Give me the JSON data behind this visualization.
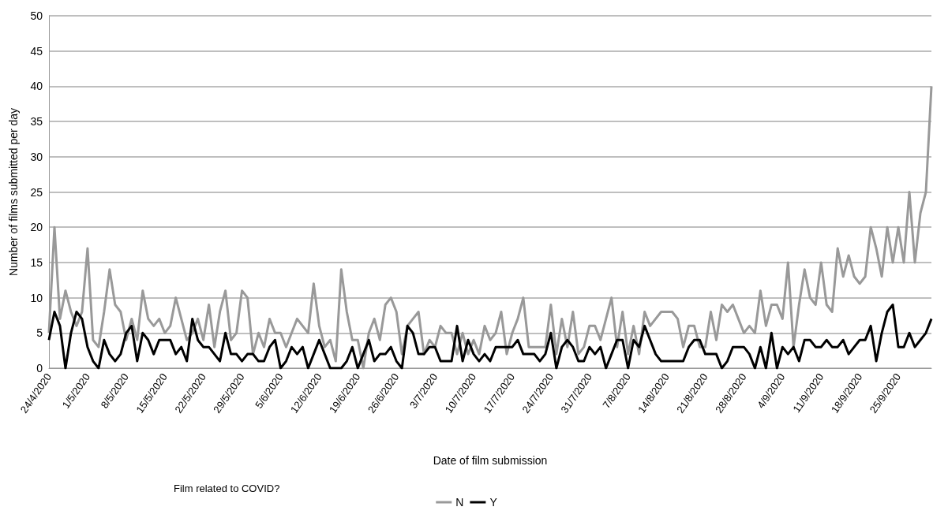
{
  "chart_data": {
    "type": "line",
    "xlabel": "Date of film submission",
    "ylabel": "Number of films submitted per day",
    "legend_title": "Film related to COVID?",
    "legend": "bottom",
    "grid": "y",
    "marker": "none",
    "line_style": "solid",
    "ylim": [
      0,
      50
    ],
    "yticks": [
      0,
      5,
      10,
      15,
      20,
      25,
      30,
      35,
      40,
      45,
      50
    ],
    "categories": [
      "24/4/2020",
      null,
      null,
      null,
      null,
      null,
      null,
      "1/5/2020",
      null,
      null,
      null,
      null,
      null,
      null,
      "8/5/2020",
      null,
      null,
      null,
      null,
      null,
      null,
      "15/5/2020",
      null,
      null,
      null,
      null,
      null,
      null,
      "22/5/2020",
      null,
      null,
      null,
      null,
      null,
      null,
      "29/5/2020",
      null,
      null,
      null,
      null,
      null,
      null,
      "5/6/2020",
      null,
      null,
      null,
      null,
      null,
      null,
      "12/6/2020",
      null,
      null,
      null,
      null,
      null,
      null,
      "19/6/2020",
      null,
      null,
      null,
      null,
      null,
      null,
      "26/6/2020",
      null,
      null,
      null,
      null,
      null,
      null,
      "3/7/2020",
      null,
      null,
      null,
      null,
      null,
      null,
      "10/7/2020",
      null,
      null,
      null,
      null,
      null,
      null,
      "17/7/2020",
      null,
      null,
      null,
      null,
      null,
      null,
      "24/7/2020",
      null,
      null,
      null,
      null,
      null,
      null,
      "31/7/2020",
      null,
      null,
      null,
      null,
      null,
      null,
      "7/8/2020",
      null,
      null,
      null,
      null,
      null,
      null,
      "14/8/2020",
      null,
      null,
      null,
      null,
      null,
      null,
      "21/8/2020",
      null,
      null,
      null,
      null,
      null,
      null,
      "28/8/2020",
      null,
      null,
      null,
      null,
      null,
      null,
      "4/9/2020",
      null,
      null,
      null,
      null,
      null,
      null,
      "11/9/2020",
      null,
      null,
      null,
      null,
      null,
      null,
      "18/9/2020",
      null,
      null,
      null,
      null,
      null,
      null,
      "25/9/2020",
      null,
      null,
      null,
      null,
      null,
      null
    ],
    "series": [
      {
        "name": "N",
        "color": "#999999",
        "values": [
          5,
          20,
          7,
          11,
          8,
          6,
          8,
          17,
          4,
          3,
          8,
          14,
          9,
          8,
          4,
          7,
          4,
          11,
          7,
          6,
          7,
          5,
          6,
          10,
          7,
          4,
          5,
          7,
          4,
          9,
          3,
          8,
          11,
          4,
          5,
          11,
          10,
          2,
          5,
          3,
          7,
          5,
          5,
          3,
          5,
          7,
          6,
          5,
          12,
          6,
          3,
          4,
          1,
          14,
          8,
          4,
          4,
          0,
          5,
          7,
          4,
          9,
          10,
          8,
          2,
          6,
          7,
          8,
          2,
          4,
          3,
          6,
          5,
          5,
          2,
          5,
          2,
          4,
          2,
          6,
          4,
          5,
          8,
          2,
          5,
          7,
          10,
          3,
          3,
          3,
          3,
          9,
          2,
          7,
          3,
          8,
          2,
          3,
          6,
          6,
          4,
          7,
          10,
          3,
          8,
          2,
          6,
          2,
          8,
          6,
          7,
          8,
          8,
          8,
          7,
          3,
          6,
          6,
          3,
          3,
          8,
          4,
          9,
          8,
          9,
          7,
          5,
          6,
          5,
          11,
          6,
          9,
          9,
          7,
          15,
          3,
          9,
          14,
          10,
          9,
          15,
          9,
          8,
          17,
          13,
          16,
          13,
          12,
          13,
          20,
          17,
          13,
          20,
          15,
          20,
          15,
          25,
          15,
          22,
          25,
          40
        ]
      },
      {
        "name": "Y",
        "color": "#000000",
        "values": [
          4,
          8,
          6,
          0,
          5,
          8,
          7,
          3,
          1,
          0,
          4,
          2,
          1,
          2,
          5,
          6,
          1,
          5,
          4,
          2,
          4,
          4,
          4,
          2,
          3,
          1,
          7,
          4,
          3,
          3,
          2,
          1,
          5,
          2,
          2,
          1,
          2,
          2,
          1,
          1,
          3,
          4,
          0,
          1,
          3,
          2,
          3,
          0,
          2,
          4,
          2,
          0,
          0,
          0,
          1,
          3,
          0,
          2,
          4,
          1,
          2,
          2,
          3,
          1,
          0,
          6,
          5,
          2,
          2,
          3,
          3,
          1,
          1,
          1,
          6,
          1,
          4,
          2,
          1,
          2,
          1,
          3,
          3,
          3,
          3,
          4,
          2,
          2,
          2,
          1,
          2,
          5,
          0,
          3,
          4,
          3,
          1,
          1,
          3,
          2,
          3,
          0,
          2,
          4,
          4,
          0,
          4,
          3,
          6,
          4,
          2,
          1,
          1,
          1,
          1,
          1,
          3,
          4,
          4,
          2,
          2,
          2,
          0,
          1,
          3,
          3,
          3,
          2,
          0,
          3,
          0,
          5,
          0,
          3,
          2,
          3,
          1,
          4,
          4,
          3,
          3,
          4,
          3,
          3,
          4,
          2,
          3,
          4,
          4,
          6,
          1,
          5,
          8,
          9,
          3,
          3,
          5,
          3,
          4,
          5,
          7
        ]
      }
    ]
  }
}
